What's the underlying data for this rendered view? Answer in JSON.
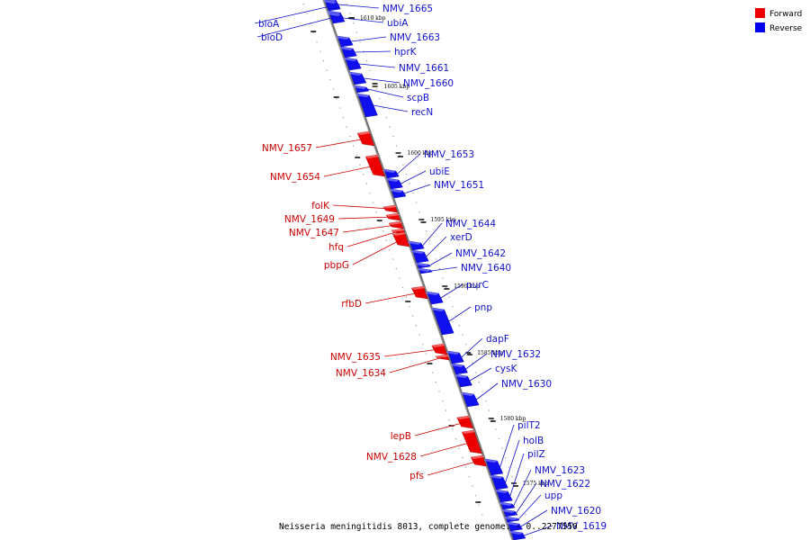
{
  "caption": "Neisseria meningitidis 8013, complete genome. - 0..2277550",
  "legend": {
    "forward": {
      "label": "Forward",
      "color": "#ee0000"
    },
    "reverse": {
      "label": "Reverse",
      "color": "#0000ee"
    }
  },
  "colors": {
    "forward": "#ee0000",
    "reverse": "#1010ee",
    "forward_text": "#cc0000",
    "reverse_text": "#1010cc",
    "axis": "#888888"
  },
  "kbp_ticks": [
    {
      "label": "1610 kbp",
      "pos": 1610
    },
    {
      "label": "1605 kbp",
      "pos": 1605
    },
    {
      "label": "1600 kbp",
      "pos": 1600
    },
    {
      "label": "1595 kbp",
      "pos": 1595
    },
    {
      "label": "1590 kbp",
      "pos": 1590
    },
    {
      "label": "1585 kbp",
      "pos": 1585
    },
    {
      "label": "1580 kbp",
      "pos": 1580
    },
    {
      "label": "1575 kbp",
      "pos": 1575
    }
  ],
  "genes": [
    {
      "name": "bioA",
      "strand": "reverse"
    },
    {
      "name": "bioD",
      "strand": "reverse"
    },
    {
      "name": "NMV_1665",
      "strand": "reverse"
    },
    {
      "name": "ubiA",
      "strand": "reverse"
    },
    {
      "name": "NMV_1663",
      "strand": "reverse"
    },
    {
      "name": "hprK",
      "strand": "reverse"
    },
    {
      "name": "NMV_1661",
      "strand": "reverse"
    },
    {
      "name": "NMV_1660",
      "strand": "reverse"
    },
    {
      "name": "scpB",
      "strand": "reverse"
    },
    {
      "name": "recN",
      "strand": "reverse"
    },
    {
      "name": "NMV_1657",
      "strand": "forward"
    },
    {
      "name": "NMV_1654",
      "strand": "forward"
    },
    {
      "name": "NMV_1653",
      "strand": "reverse"
    },
    {
      "name": "ubiE",
      "strand": "reverse"
    },
    {
      "name": "NMV_1651",
      "strand": "reverse"
    },
    {
      "name": "folK",
      "strand": "forward"
    },
    {
      "name": "NMV_1649",
      "strand": "forward"
    },
    {
      "name": "NMV_1647",
      "strand": "forward"
    },
    {
      "name": "hfq",
      "strand": "forward"
    },
    {
      "name": "pbpG",
      "strand": "forward"
    },
    {
      "name": "NMV_1644",
      "strand": "reverse"
    },
    {
      "name": "xerD",
      "strand": "reverse"
    },
    {
      "name": "NMV_1642",
      "strand": "reverse"
    },
    {
      "name": "NMV_1640",
      "strand": "reverse"
    },
    {
      "name": "rfbD",
      "strand": "forward"
    },
    {
      "name": "purC",
      "strand": "reverse"
    },
    {
      "name": "pnp",
      "strand": "reverse"
    },
    {
      "name": "NMV_1635",
      "strand": "forward"
    },
    {
      "name": "NMV_1634",
      "strand": "forward"
    },
    {
      "name": "dapF",
      "strand": "reverse"
    },
    {
      "name": "NMV_1632",
      "strand": "reverse"
    },
    {
      "name": "cysK",
      "strand": "reverse"
    },
    {
      "name": "NMV_1630",
      "strand": "reverse"
    },
    {
      "name": "lepB",
      "strand": "forward"
    },
    {
      "name": "NMV_1628",
      "strand": "forward"
    },
    {
      "name": "pfs",
      "strand": "forward"
    },
    {
      "name": "pilT2",
      "strand": "reverse"
    },
    {
      "name": "holB",
      "strand": "reverse"
    },
    {
      "name": "pilZ",
      "strand": "reverse"
    },
    {
      "name": "NMV_1623",
      "strand": "reverse"
    },
    {
      "name": "NMV_1622",
      "strand": "reverse"
    },
    {
      "name": "upp",
      "strand": "reverse"
    },
    {
      "name": "NMV_1620",
      "strand": "reverse"
    },
    {
      "name": "NMV_1619",
      "strand": "reverse"
    }
  ]
}
